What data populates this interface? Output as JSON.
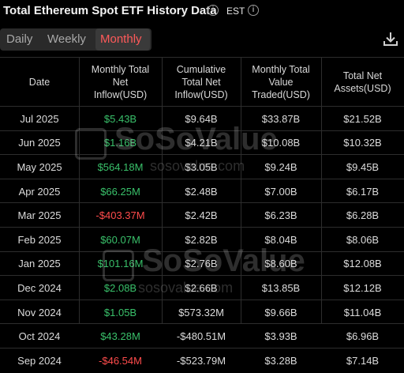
{
  "header": {
    "title": "Total Ethereum Spot ETF History Data",
    "timezone": "EST"
  },
  "tabs": [
    {
      "label": "Daily",
      "active": false
    },
    {
      "label": "Weekly",
      "active": false
    },
    {
      "label": "Monthly",
      "active": true
    }
  ],
  "colors": {
    "positive": "#39c06a",
    "negative": "#ff4c4c",
    "active_tab": "#ff5a5a"
  },
  "table": {
    "columns": [
      "Date",
      "Monthly Total Net Inflow(USD)",
      "Cumulative Total Net Inflow(USD)",
      "Monthly Total Value Traded(USD)",
      "Total Net Assets(USD)"
    ],
    "rows": [
      {
        "date": "Jul 2025",
        "inflow": "$5.43B",
        "sign": "pos",
        "cumulative": "$9.64B",
        "traded": "$33.87B",
        "assets": "$21.52B"
      },
      {
        "date": "Jun 2025",
        "inflow": "$1.16B",
        "sign": "pos",
        "cumulative": "$4.21B",
        "traded": "$10.08B",
        "assets": "$10.32B"
      },
      {
        "date": "May 2025",
        "inflow": "$564.18M",
        "sign": "pos",
        "cumulative": "$3.05B",
        "traded": "$9.24B",
        "assets": "$9.45B"
      },
      {
        "date": "Apr 2025",
        "inflow": "$66.25M",
        "sign": "pos",
        "cumulative": "$2.48B",
        "traded": "$7.00B",
        "assets": "$6.17B"
      },
      {
        "date": "Mar 2025",
        "inflow": "-$403.37M",
        "sign": "neg",
        "cumulative": "$2.42B",
        "traded": "$6.23B",
        "assets": "$6.28B"
      },
      {
        "date": "Feb 2025",
        "inflow": "$60.07M",
        "sign": "pos",
        "cumulative": "$2.82B",
        "traded": "$8.04B",
        "assets": "$8.06B"
      },
      {
        "date": "Jan 2025",
        "inflow": "$101.16M",
        "sign": "pos",
        "cumulative": "$2.76B",
        "traded": "$8.60B",
        "assets": "$12.08B"
      },
      {
        "date": "Dec 2024",
        "inflow": "$2.08B",
        "sign": "pos",
        "cumulative": "$2.66B",
        "traded": "$13.85B",
        "assets": "$12.12B"
      },
      {
        "date": "Nov 2024",
        "inflow": "$1.05B",
        "sign": "pos",
        "cumulative": "$573.32M",
        "traded": "$9.66B",
        "assets": "$11.04B"
      },
      {
        "date": "Oct 2024",
        "inflow": "$43.28M",
        "sign": "pos",
        "cumulative": "-$480.51M",
        "traded": "$3.93B",
        "assets": "$6.96B"
      },
      {
        "date": "Sep 2024",
        "inflow": "-$46.54M",
        "sign": "neg",
        "cumulative": "-$523.79M",
        "traded": "$3.28B",
        "assets": "$7.14B"
      }
    ]
  },
  "watermark": {
    "brand": "SoSoValue",
    "site": "sosovalue.com"
  }
}
